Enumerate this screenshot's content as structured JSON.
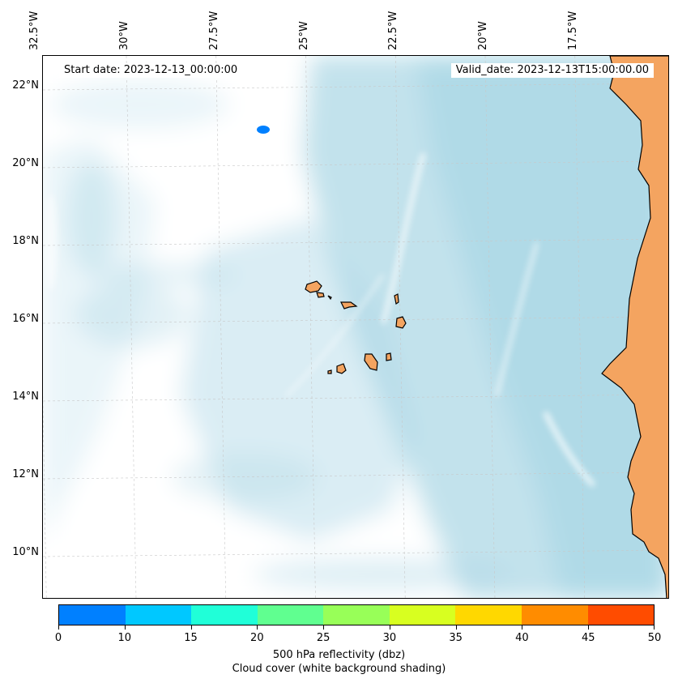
{
  "map": {
    "top_ticks": [
      {
        "label": "32.5°W",
        "lon": -32.5
      },
      {
        "label": "30°W",
        "lon": -30
      },
      {
        "label": "27.5°W",
        "lon": -27.5
      },
      {
        "label": "25°W",
        "lon": -25
      },
      {
        "label": "22.5°W",
        "lon": -22.5
      },
      {
        "label": "20°W",
        "lon": -20
      },
      {
        "label": "17.5°W",
        "lon": -17.5
      }
    ],
    "left_ticks": [
      {
        "label": "22°N",
        "lat": 22
      },
      {
        "label": "20°N",
        "lat": 20
      },
      {
        "label": "18°N",
        "lat": 18
      },
      {
        "label": "16°N",
        "lat": 16
      },
      {
        "label": "14°N",
        "lat": 14
      },
      {
        "label": "12°N",
        "lat": 12
      },
      {
        "label": "10°N",
        "lat": 10
      }
    ],
    "start_date": "Start date: 2023-12-13_00:00:00",
    "valid_date": "Valid_date: 2023-12-13T15:00:00.00",
    "colors": {
      "land": "#f4a460",
      "land_light": "#f5c69a",
      "cloud": "#add8e6",
      "coast": "#000000",
      "grid": "#c8c8c8",
      "echo": "#0080ff"
    }
  },
  "colorbar": {
    "colors": [
      "#0080ff",
      "#00c8ff",
      "#20ffd8",
      "#60ff90",
      "#98ff58",
      "#d8ff20",
      "#ffd800",
      "#ff8c00",
      "#ff4c00"
    ],
    "ticks": [
      "0",
      "10",
      "15",
      "20",
      "25",
      "30",
      "35",
      "40",
      "45",
      "50"
    ],
    "title_line1": "500 hPa reflectivity (dbz)",
    "title_line2": "Cloud cover (white background shading)"
  }
}
